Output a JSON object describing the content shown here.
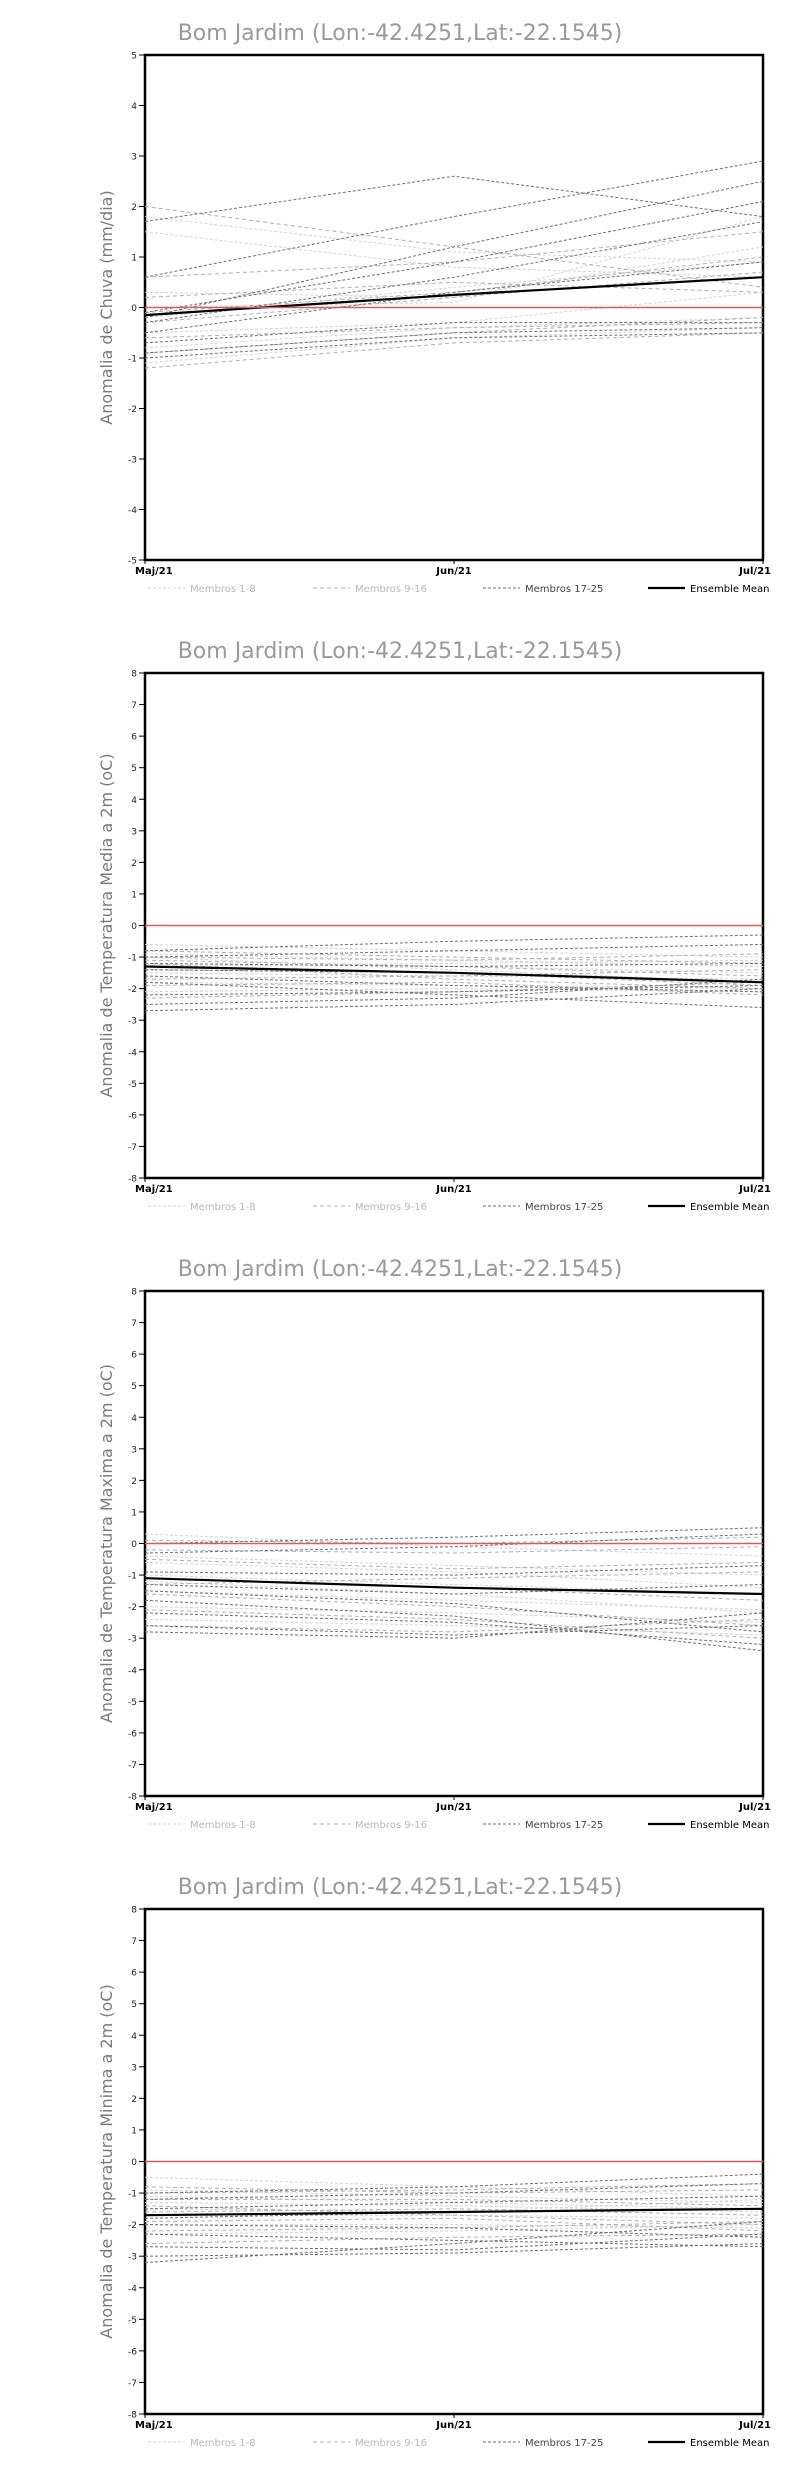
{
  "legend": {
    "labels": [
      "Membros 1-8",
      "Membros 9-16",
      "Membros 17-25",
      "Ensemble Mean"
    ],
    "colors": [
      "#d4d4d4",
      "#b0b0b0",
      "#707070",
      "#000000"
    ]
  },
  "zero_line_color": "#e05a5a",
  "chart_data": [
    {
      "type": "line",
      "title": "Bom Jardim (Lon:-42.4251,Lat:-22.1545)",
      "ylabel": "Anomalia de Chuva (mm/dia)",
      "xlabel": "",
      "categories": [
        "Maj/21",
        "Jun/21",
        "Jul/21"
      ],
      "ylim": [
        -5,
        5
      ],
      "yticks": [
        -5,
        -4,
        -3,
        -2,
        -1,
        0,
        1,
        2,
        3,
        4,
        5
      ],
      "grid": false,
      "legend_position": "bottom",
      "series": [
        {
          "group": 0,
          "values": [
            1.8,
            1.1,
            0.9
          ]
        },
        {
          "group": 0,
          "values": [
            1.5,
            0.8,
            0.6
          ]
        },
        {
          "group": 0,
          "values": [
            0.3,
            0.2,
            1.2
          ]
        },
        {
          "group": 0,
          "values": [
            -0.2,
            0.4,
            0.9
          ]
        },
        {
          "group": 0,
          "values": [
            -0.5,
            -0.3,
            0.3
          ]
        },
        {
          "group": 0,
          "values": [
            -0.8,
            -0.4,
            -0.2
          ]
        },
        {
          "group": 0,
          "values": [
            -1.1,
            -0.6,
            -0.4
          ]
        },
        {
          "group": 0,
          "values": [
            0.0,
            0.1,
            1.8
          ]
        },
        {
          "group": 1,
          "values": [
            2.0,
            1.2,
            0.4
          ]
        },
        {
          "group": 1,
          "values": [
            0.6,
            0.9,
            1.5
          ]
        },
        {
          "group": 1,
          "values": [
            -0.3,
            0.2,
            0.7
          ]
        },
        {
          "group": 1,
          "values": [
            -0.6,
            -0.4,
            -0.3
          ]
        },
        {
          "group": 1,
          "values": [
            -0.9,
            -0.5,
            -0.2
          ]
        },
        {
          "group": 1,
          "values": [
            -1.2,
            -0.7,
            -0.5
          ]
        },
        {
          "group": 1,
          "values": [
            0.2,
            0.5,
            0.3
          ]
        },
        {
          "group": 1,
          "values": [
            -0.1,
            0.3,
            1.0
          ]
        },
        {
          "group": 2,
          "values": [
            1.7,
            2.6,
            1.8
          ]
        },
        {
          "group": 2,
          "values": [
            0.6,
            1.8,
            2.9
          ]
        },
        {
          "group": 2,
          "values": [
            -0.2,
            1.2,
            2.5
          ]
        },
        {
          "group": 2,
          "values": [
            -0.1,
            0.9,
            2.1
          ]
        },
        {
          "group": 2,
          "values": [
            -0.3,
            0.6,
            1.7
          ]
        },
        {
          "group": 2,
          "values": [
            -0.5,
            0.3,
            0.9
          ]
        },
        {
          "group": 2,
          "values": [
            -0.7,
            -0.3,
            -0.3
          ]
        },
        {
          "group": 2,
          "values": [
            -0.9,
            -0.5,
            -0.4
          ]
        },
        {
          "group": 2,
          "values": [
            -1.0,
            -0.6,
            -0.5
          ]
        },
        {
          "group": 3,
          "values": [
            -0.15,
            0.25,
            0.6
          ]
        }
      ]
    },
    {
      "type": "line",
      "title": "Bom Jardim (Lon:-42.4251,Lat:-22.1545)",
      "ylabel": "Anomalia de Temperatura Media a 2m (oC)",
      "xlabel": "",
      "categories": [
        "Maj/21",
        "Jun/21",
        "Jul/21"
      ],
      "ylim": [
        -8,
        8
      ],
      "yticks": [
        -8,
        -7,
        -6,
        -5,
        -4,
        -3,
        -2,
        -1,
        0,
        1,
        2,
        3,
        4,
        5,
        6,
        7,
        8
      ],
      "grid": false,
      "legend_position": "bottom",
      "series": [
        {
          "group": 0,
          "values": [
            -0.6,
            -0.8,
            -1.0
          ]
        },
        {
          "group": 0,
          "values": [
            -0.9,
            -1.1,
            -1.3
          ]
        },
        {
          "group": 0,
          "values": [
            -1.2,
            -1.3,
            -1.5
          ]
        },
        {
          "group": 0,
          "values": [
            -1.5,
            -1.6,
            -1.7
          ]
        },
        {
          "group": 0,
          "values": [
            -1.8,
            -1.9,
            -2.0
          ]
        },
        {
          "group": 0,
          "values": [
            -2.1,
            -2.0,
            -2.1
          ]
        },
        {
          "group": 0,
          "values": [
            -1.0,
            -1.4,
            -1.8
          ]
        },
        {
          "group": 0,
          "values": [
            -1.3,
            -1.2,
            -1.1
          ]
        },
        {
          "group": 1,
          "values": [
            -0.8,
            -1.0,
            -1.2
          ]
        },
        {
          "group": 1,
          "values": [
            -1.1,
            -1.3,
            -1.6
          ]
        },
        {
          "group": 1,
          "values": [
            -1.4,
            -1.5,
            -1.9
          ]
        },
        {
          "group": 1,
          "values": [
            -1.7,
            -1.6,
            -1.4
          ]
        },
        {
          "group": 1,
          "values": [
            -1.9,
            -1.8,
            -2.2
          ]
        },
        {
          "group": 1,
          "values": [
            -2.3,
            -2.1,
            -1.8
          ]
        },
        {
          "group": 1,
          "values": [
            -1.2,
            -1.7,
            -2.0
          ]
        },
        {
          "group": 1,
          "values": [
            -1.0,
            -1.1,
            -0.9
          ]
        },
        {
          "group": 2,
          "values": [
            -0.8,
            -0.5,
            -0.3
          ]
        },
        {
          "group": 2,
          "values": [
            -1.0,
            -0.8,
            -0.6
          ]
        },
        {
          "group": 2,
          "values": [
            -1.2,
            -1.3,
            -1.2
          ]
        },
        {
          "group": 2,
          "values": [
            -1.4,
            -1.5,
            -1.8
          ]
        },
        {
          "group": 2,
          "values": [
            -1.6,
            -1.9,
            -2.1
          ]
        },
        {
          "group": 2,
          "values": [
            -1.8,
            -2.2,
            -2.6
          ]
        },
        {
          "group": 2,
          "values": [
            -2.2,
            -2.1,
            -1.9
          ]
        },
        {
          "group": 2,
          "values": [
            -2.5,
            -2.3,
            -1.7
          ]
        },
        {
          "group": 2,
          "values": [
            -2.7,
            -2.5,
            -2.0
          ]
        },
        {
          "group": 3,
          "values": [
            -1.3,
            -1.5,
            -1.8
          ]
        }
      ]
    },
    {
      "type": "line",
      "title": "Bom Jardim (Lon:-42.4251,Lat:-22.1545)",
      "ylabel": "Anomalia de Temperatura Maxima a 2m (oC)",
      "xlabel": "",
      "categories": [
        "Maj/21",
        "Jun/21",
        "Jul/21"
      ],
      "ylim": [
        -8,
        8
      ],
      "yticks": [
        -8,
        -7,
        -6,
        -5,
        -4,
        -3,
        -2,
        -1,
        0,
        1,
        2,
        3,
        4,
        5,
        6,
        7,
        8
      ],
      "grid": false,
      "legend_position": "bottom",
      "series": [
        {
          "group": 0,
          "values": [
            0.3,
            -0.1,
            -0.4
          ]
        },
        {
          "group": 0,
          "values": [
            -0.4,
            -0.7,
            -1.0
          ]
        },
        {
          "group": 0,
          "values": [
            -1.0,
            -1.3,
            -1.6
          ]
        },
        {
          "group": 0,
          "values": [
            -1.5,
            -1.8,
            -2.1
          ]
        },
        {
          "group": 0,
          "values": [
            -2.0,
            -2.2,
            -2.5
          ]
        },
        {
          "group": 0,
          "values": [
            -2.4,
            -2.6,
            -2.9
          ]
        },
        {
          "group": 0,
          "values": [
            -0.6,
            -0.9,
            -1.4
          ]
        },
        {
          "group": 0,
          "values": [
            -1.2,
            -1.6,
            -2.2
          ]
        },
        {
          "group": 1,
          "values": [
            0.1,
            0.0,
            0.2
          ]
        },
        {
          "group": 1,
          "values": [
            -0.5,
            -0.8,
            -0.6
          ]
        },
        {
          "group": 1,
          "values": [
            -1.1,
            -1.4,
            -1.8
          ]
        },
        {
          "group": 1,
          "values": [
            -1.6,
            -2.0,
            -2.6
          ]
        },
        {
          "group": 1,
          "values": [
            -2.1,
            -2.4,
            -3.0
          ]
        },
        {
          "group": 1,
          "values": [
            -2.6,
            -2.8,
            -2.4
          ]
        },
        {
          "group": 1,
          "values": [
            -1.3,
            -1.1,
            -0.9
          ]
        },
        {
          "group": 1,
          "values": [
            -0.2,
            -0.3,
            -0.1
          ]
        },
        {
          "group": 2,
          "values": [
            0.0,
            0.2,
            0.5
          ]
        },
        {
          "group": 2,
          "values": [
            -0.3,
            -0.1,
            0.3
          ]
        },
        {
          "group": 2,
          "values": [
            -0.9,
            -1.0,
            -0.7
          ]
        },
        {
          "group": 2,
          "values": [
            -1.3,
            -1.6,
            -1.3
          ]
        },
        {
          "group": 2,
          "values": [
            -1.8,
            -2.3,
            -3.4
          ]
        },
        {
          "group": 2,
          "values": [
            -2.2,
            -2.5,
            -3.2
          ]
        },
        {
          "group": 2,
          "values": [
            -2.6,
            -2.9,
            -2.6
          ]
        },
        {
          "group": 2,
          "values": [
            -2.8,
            -3.0,
            -2.2
          ]
        },
        {
          "group": 2,
          "values": [
            -1.5,
            -1.9,
            -2.8
          ]
        },
        {
          "group": 3,
          "values": [
            -1.1,
            -1.4,
            -1.6
          ]
        }
      ]
    },
    {
      "type": "line",
      "title": "Bom Jardim (Lon:-42.4251,Lat:-22.1545)",
      "ylabel": "Anomalia de Temperatura Minima a 2m (oC)",
      "xlabel": "",
      "categories": [
        "Maj/21",
        "Jun/21",
        "Jul/21"
      ],
      "ylim": [
        -8,
        8
      ],
      "yticks": [
        -8,
        -7,
        -6,
        -5,
        -4,
        -3,
        -2,
        -1,
        0,
        1,
        2,
        3,
        4,
        5,
        6,
        7,
        8
      ],
      "grid": false,
      "legend_position": "bottom",
      "series": [
        {
          "group": 0,
          "values": [
            -0.5,
            -0.8,
            -1.1
          ]
        },
        {
          "group": 0,
          "values": [
            -0.9,
            -1.1,
            -1.3
          ]
        },
        {
          "group": 0,
          "values": [
            -1.3,
            -1.4,
            -1.6
          ]
        },
        {
          "group": 0,
          "values": [
            -1.7,
            -1.7,
            -1.8
          ]
        },
        {
          "group": 0,
          "values": [
            -2.0,
            -2.0,
            -2.1
          ]
        },
        {
          "group": 0,
          "values": [
            -2.3,
            -2.2,
            -2.0
          ]
        },
        {
          "group": 0,
          "values": [
            -1.1,
            -1.3,
            -1.5
          ]
        },
        {
          "group": 0,
          "values": [
            -1.5,
            -1.6,
            -1.2
          ]
        },
        {
          "group": 1,
          "values": [
            -0.8,
            -1.0,
            -0.9
          ]
        },
        {
          "group": 1,
          "values": [
            -1.2,
            -1.2,
            -1.4
          ]
        },
        {
          "group": 1,
          "values": [
            -1.6,
            -1.5,
            -1.7
          ]
        },
        {
          "group": 1,
          "values": [
            -1.9,
            -1.8,
            -2.2
          ]
        },
        {
          "group": 1,
          "values": [
            -2.2,
            -2.1,
            -1.9
          ]
        },
        {
          "group": 1,
          "values": [
            -2.6,
            -2.4,
            -2.3
          ]
        },
        {
          "group": 1,
          "values": [
            -1.4,
            -1.7,
            -2.0
          ]
        },
        {
          "group": 1,
          "values": [
            -1.0,
            -0.9,
            -0.7
          ]
        },
        {
          "group": 2,
          "values": [
            -1.0,
            -0.8,
            -0.4
          ]
        },
        {
          "group": 2,
          "values": [
            -1.2,
            -1.0,
            -0.7
          ]
        },
        {
          "group": 2,
          "values": [
            -1.5,
            -1.3,
            -1.1
          ]
        },
        {
          "group": 2,
          "values": [
            -1.8,
            -1.6,
            -1.5
          ]
        },
        {
          "group": 2,
          "values": [
            -2.0,
            -2.1,
            -2.4
          ]
        },
        {
          "group": 2,
          "values": [
            -2.3,
            -2.5,
            -2.7
          ]
        },
        {
          "group": 2,
          "values": [
            -2.7,
            -2.8,
            -2.3
          ]
        },
        {
          "group": 2,
          "values": [
            -3.0,
            -2.9,
            -2.6
          ]
        },
        {
          "group": 2,
          "values": [
            -3.2,
            -2.6,
            -1.9
          ]
        },
        {
          "group": 3,
          "values": [
            -1.7,
            -1.6,
            -1.5
          ]
        }
      ]
    }
  ]
}
